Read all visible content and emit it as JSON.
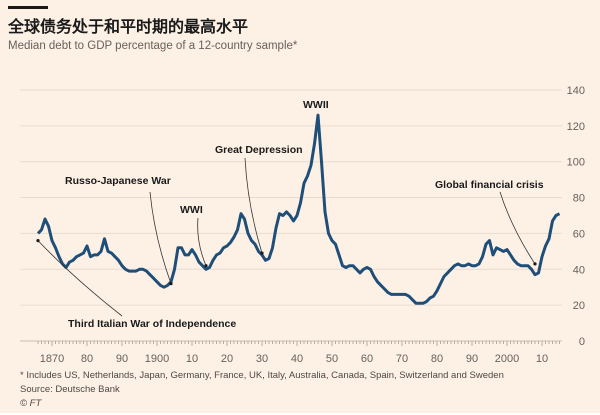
{
  "header": {
    "title": "全球债务处于和平时期的最高水平",
    "subtitle": "Median debt to GDP percentage of a 12-country sample*"
  },
  "footer": {
    "note": "* Includes US, Netherlands, Japan, Germany, France, UK, Italy, Australia, Canada, Spain, Switzerland and Sweden",
    "source": "Source: Deutsche Bank",
    "credit": "© FT"
  },
  "colors": {
    "background": "#fdf1e6",
    "line": "#1f4e79",
    "grid": "#e8dcd0"
  },
  "chart_data": {
    "type": "line",
    "title": "全球债务处于和平时期的最高水平",
    "subtitle": "Median debt to GDP percentage of a 12-country sample*",
    "xlim": [
      1866,
      2015
    ],
    "ylim": [
      0,
      140
    ],
    "y_axis_side": "right",
    "grid": true,
    "y_ticks": [
      0,
      20,
      40,
      60,
      80,
      100,
      120,
      140
    ],
    "x_ticks": [
      {
        "value": 1870,
        "label": "1870"
      },
      {
        "value": 1880,
        "label": "80"
      },
      {
        "value": 1890,
        "label": "90"
      },
      {
        "value": 1900,
        "label": "1900"
      },
      {
        "value": 1910,
        "label": "10"
      },
      {
        "value": 1920,
        "label": "20"
      },
      {
        "value": 1930,
        "label": "30"
      },
      {
        "value": 1940,
        "label": "40"
      },
      {
        "value": 1950,
        "label": "50"
      },
      {
        "value": 1960,
        "label": "60"
      },
      {
        "value": 1970,
        "label": "70"
      },
      {
        "value": 1980,
        "label": "80"
      },
      {
        "value": 1990,
        "label": "90"
      },
      {
        "value": 2000,
        "label": "2000"
      },
      {
        "value": 2010,
        "label": "10"
      }
    ],
    "x_start": 1866,
    "x_step": 1,
    "values": [
      60,
      62,
      68,
      64,
      56,
      52,
      47,
      43,
      41,
      44,
      45,
      47,
      48,
      49,
      53,
      47,
      48,
      48,
      50,
      57,
      50,
      49,
      47,
      45,
      42,
      40,
      39,
      39,
      39,
      40,
      40,
      39,
      37,
      35,
      33,
      31,
      30,
      31,
      33,
      40,
      52,
      52,
      48,
      48,
      51,
      48,
      44,
      42,
      40,
      41,
      45,
      48,
      49,
      52,
      53,
      55,
      58,
      62,
      71,
      68,
      60,
      56,
      54,
      50,
      48,
      45,
      46,
      52,
      63,
      71,
      70,
      72,
      70,
      67,
      70,
      77,
      88,
      92,
      98,
      110,
      126,
      100,
      72,
      60,
      56,
      54,
      48,
      42,
      41,
      42,
      42,
      40,
      38,
      40,
      41,
      40,
      36,
      33,
      31,
      29,
      27,
      26,
      26,
      26,
      26,
      26,
      25,
      23,
      21,
      21,
      21,
      22,
      24,
      25,
      28,
      32,
      36,
      38,
      40,
      42,
      43,
      42,
      42,
      43,
      42,
      42,
      43,
      47,
      54,
      56,
      48,
      52,
      51,
      50,
      51,
      48,
      45,
      43,
      42,
      42,
      42,
      40,
      37,
      38,
      47,
      53,
      57,
      67,
      70,
      71
    ],
    "annotations": [
      {
        "label": "Third Italian War of Independence",
        "year": 1866,
        "value": 56
      },
      {
        "label": "Russo-Japanese War",
        "year": 1904,
        "value": 32
      },
      {
        "label": "WWI",
        "year": 1914,
        "value": 42
      },
      {
        "label": "Great Depression",
        "year": 1930,
        "value": 49
      },
      {
        "label": "WWII",
        "year": 1946,
        "value": 126
      },
      {
        "label": "Global financial crisis",
        "year": 2008,
        "value": 43
      }
    ]
  }
}
